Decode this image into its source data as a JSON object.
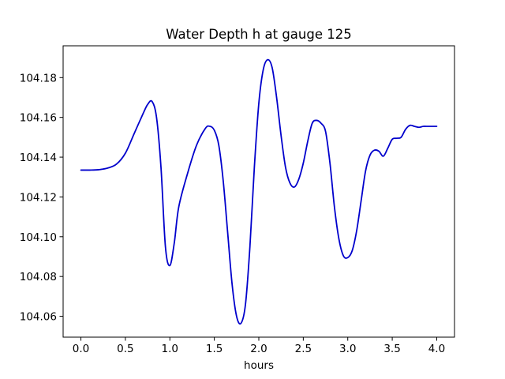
{
  "chart_data": {
    "type": "line",
    "title": "Water Depth h at gauge 125",
    "xlabel": "hours",
    "ylabel": "",
    "xlim": [
      -0.2,
      4.2
    ],
    "ylim": [
      104.0495,
      104.196
    ],
    "grid": false,
    "xticks": [
      0.0,
      0.5,
      1.0,
      1.5,
      2.0,
      2.5,
      3.0,
      3.5,
      4.0
    ],
    "xtick_labels": [
      "0.0",
      "0.5",
      "1.0",
      "1.5",
      "2.0",
      "2.5",
      "3.0",
      "3.5",
      "4.0"
    ],
    "yticks": [
      104.06,
      104.08,
      104.1,
      104.12,
      104.14,
      104.16,
      104.18
    ],
    "ytick_labels": [
      "104.06",
      "104.08",
      "104.10",
      "104.12",
      "104.14",
      "104.16",
      "104.18"
    ],
    "color": "#0000cc",
    "series": [
      {
        "x": [
          0.0,
          0.1,
          0.2,
          0.3,
          0.4,
          0.5,
          0.6,
          0.7,
          0.75,
          0.8,
          0.85,
          0.9,
          0.95,
          1.0,
          1.05,
          1.1,
          1.2,
          1.3,
          1.4,
          1.45,
          1.5,
          1.55,
          1.6,
          1.65,
          1.7,
          1.75,
          1.8,
          1.85,
          1.9,
          1.95,
          2.0,
          2.05,
          2.1,
          2.15,
          2.2,
          2.25,
          2.3,
          2.35,
          2.4,
          2.45,
          2.5,
          2.55,
          2.6,
          2.65,
          2.7,
          2.75,
          2.8,
          2.85,
          2.9,
          2.95,
          3.0,
          3.05,
          3.1,
          3.15,
          3.2,
          3.25,
          3.3,
          3.35,
          3.4,
          3.45,
          3.5,
          3.55,
          3.6,
          3.65,
          3.7,
          3.75,
          3.8,
          3.85,
          3.9,
          3.95,
          4.0
        ],
        "values": [
          104.1335,
          104.1335,
          104.1337,
          104.1345,
          104.1365,
          104.142,
          104.152,
          104.162,
          104.1665,
          104.168,
          104.16,
          104.135,
          104.095,
          104.0855,
          104.097,
          104.115,
          104.132,
          104.146,
          104.1545,
          104.1555,
          104.1535,
          104.146,
          104.128,
          104.102,
          104.076,
          104.06,
          104.0565,
          104.066,
          104.095,
          104.135,
          104.167,
          104.184,
          104.189,
          104.185,
          104.17,
          104.151,
          104.135,
          104.127,
          104.125,
          104.129,
          104.137,
          104.148,
          104.157,
          104.1585,
          104.157,
          104.153,
          104.137,
          104.115,
          104.099,
          104.0905,
          104.0895,
          104.093,
          104.103,
          104.118,
          104.133,
          104.141,
          104.1435,
          104.143,
          104.1405,
          104.1445,
          104.149,
          104.1495,
          104.15,
          104.154,
          104.156,
          104.1555,
          104.155,
          104.1555,
          104.1555,
          104.1555,
          104.1555
        ]
      }
    ]
  }
}
